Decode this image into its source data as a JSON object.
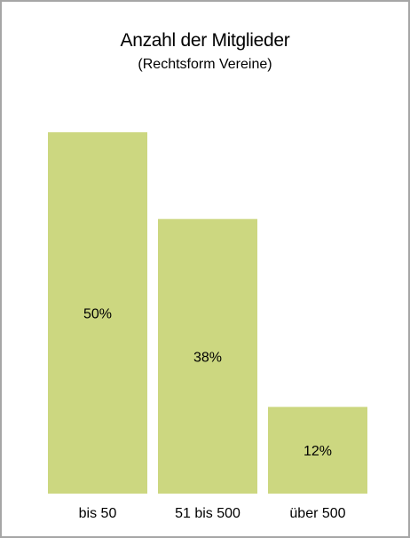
{
  "chart_data": {
    "type": "bar",
    "title": "Anzahl der Mitglieder",
    "subtitle": "(Rechtsform Vereine)",
    "categories": [
      "bis 50",
      "51 bis 500",
      "über 500"
    ],
    "values": [
      50,
      38,
      12
    ],
    "data_labels": [
      "50%",
      "38%",
      "12%"
    ],
    "unit": "%",
    "ylim": [
      0,
      50
    ],
    "grid": false,
    "legend": "none",
    "bar_color": "#ccd780"
  }
}
